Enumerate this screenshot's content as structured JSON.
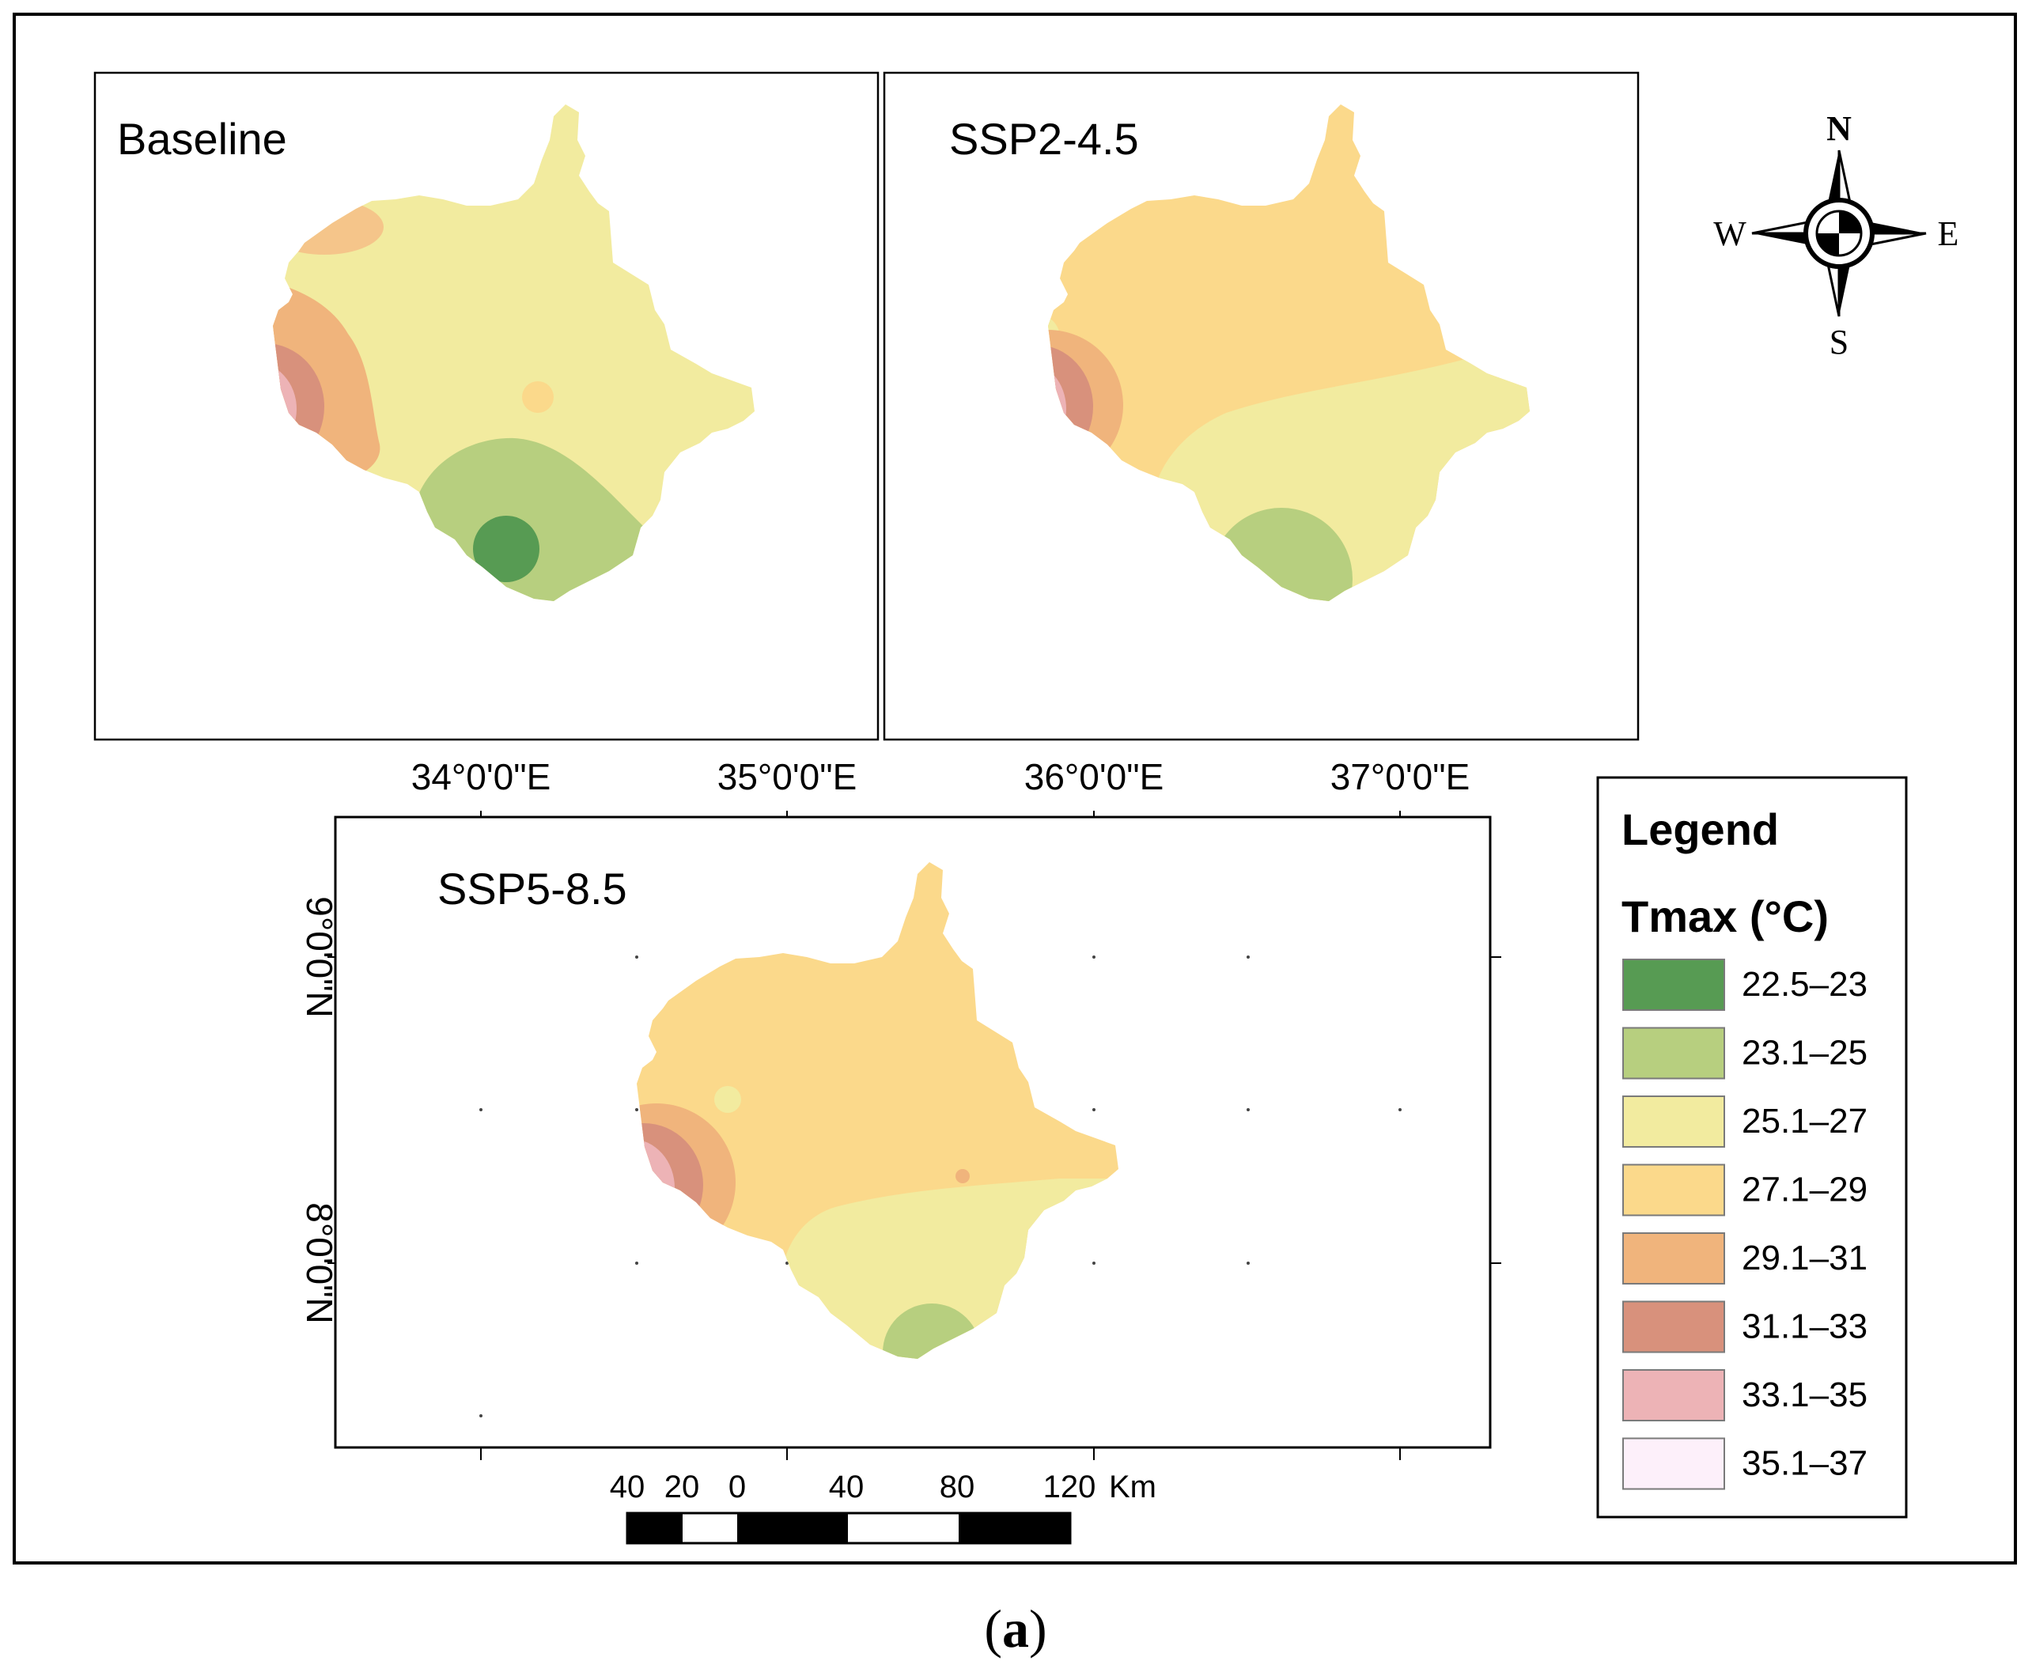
{
  "figure": {
    "caption": "(a)",
    "caption_letter": "a"
  },
  "panels": [
    {
      "id": "baseline",
      "title": "Baseline"
    },
    {
      "id": "ssp245",
      "title": "SSP2-4.5"
    },
    {
      "id": "ssp585",
      "title": "SSP5-8.5"
    }
  ],
  "axes": {
    "longitude_labels": [
      "34°0'0\"E",
      "35°0'0\"E",
      "36°0'0\"E",
      "37°0'0\"E"
    ],
    "latitude_labels": [
      "9°0'0\"N",
      "8°0'0\"N"
    ]
  },
  "scale_bar": {
    "ticks": [
      "40",
      "20",
      "0",
      "40",
      "80",
      "120"
    ],
    "unit": "Km"
  },
  "north_arrow": {
    "n": "N",
    "s": "S",
    "e": "E",
    "w": "W"
  },
  "legend": {
    "title": "Legend",
    "variable": "Tmax (°C)",
    "classes": [
      {
        "range": "22.5–23",
        "color": "#579b53"
      },
      {
        "range": "23.1–25",
        "color": "#b7cf7f"
      },
      {
        "range": "25.1–27",
        "color": "#f2eb9f"
      },
      {
        "range": "27.1–29",
        "color": "#fbd98b"
      },
      {
        "range": "29.1–31",
        "color": "#f0b47c"
      },
      {
        "range": "31.1–33",
        "color": "#d8917c"
      },
      {
        "range": "33.1–35",
        "color": "#edb3b6"
      },
      {
        "range": "35.1–37",
        "color": "#fdf0fa"
      }
    ]
  }
}
